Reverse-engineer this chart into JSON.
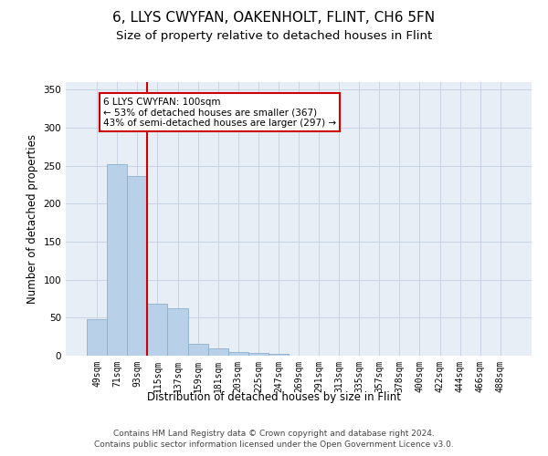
{
  "title": "6, LLYS CWYFAN, OAKENHOLT, FLINT, CH6 5FN",
  "subtitle": "Size of property relative to detached houses in Flint",
  "xlabel": "Distribution of detached houses by size in Flint",
  "ylabel": "Number of detached properties",
  "categories": [
    "49sqm",
    "71sqm",
    "93sqm",
    "115sqm",
    "137sqm",
    "159sqm",
    "181sqm",
    "203sqm",
    "225sqm",
    "247sqm",
    "269sqm",
    "291sqm",
    "313sqm",
    "335sqm",
    "357sqm",
    "378sqm",
    "400sqm",
    "422sqm",
    "444sqm",
    "466sqm",
    "488sqm"
  ],
  "values": [
    48,
    252,
    236,
    68,
    63,
    16,
    10,
    5,
    4,
    3,
    0,
    0,
    0,
    0,
    0,
    0,
    0,
    0,
    0,
    0,
    0
  ],
  "bar_color": "#b8d0e8",
  "bar_edge_color": "#8ab0cc",
  "grid_color": "#c8d4e4",
  "background_color": "#e8eef6",
  "vline_color": "#cc0000",
  "annotation_text": "6 LLYS CWYFAN: 100sqm\n← 53% of detached houses are smaller (367)\n43% of semi-detached houses are larger (297) →",
  "annotation_box_color": "#ffffff",
  "annotation_box_edge_color": "#cc0000",
  "footer_line1": "Contains HM Land Registry data © Crown copyright and database right 2024.",
  "footer_line2": "Contains public sector information licensed under the Open Government Licence v3.0.",
  "ylim": [
    0,
    360
  ],
  "yticks": [
    0,
    50,
    100,
    150,
    200,
    250,
    300,
    350
  ],
  "title_fontsize": 11,
  "subtitle_fontsize": 9.5,
  "footer_fontsize": 6.5,
  "label_fontsize": 8.5,
  "tick_fontsize": 7,
  "annotation_fontsize": 7.5
}
